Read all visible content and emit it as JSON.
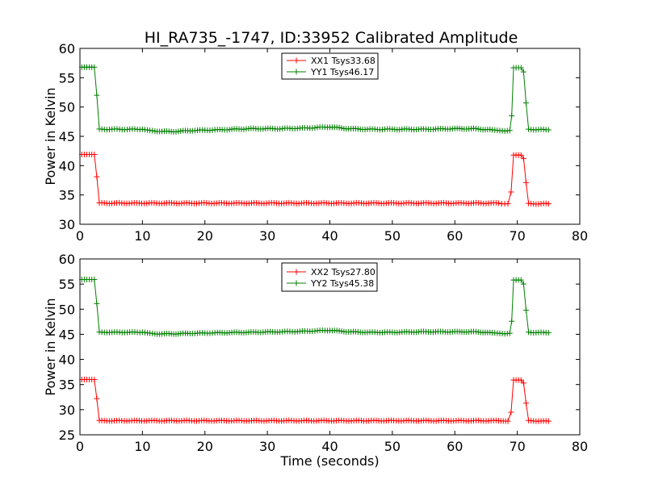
{
  "title": "HI_RA735_-1747, ID:33952 Calibrated Amplitude",
  "chart_data": [
    {
      "type": "line",
      "xlabel": "",
      "ylabel": "Power in Kelvin",
      "xlim": [
        0,
        80
      ],
      "ylim": [
        30,
        60
      ],
      "xticks": [
        0,
        10,
        20,
        30,
        40,
        50,
        60,
        70,
        80
      ],
      "yticks": [
        30,
        35,
        40,
        45,
        50,
        55,
        60
      ],
      "grid": false,
      "legend_position": "top-center",
      "marker": "plus",
      "series": [
        {
          "name": "XX1 Tsys33.68",
          "color": "#ff0000",
          "points": [
            [
              0.3,
              41.9
            ],
            [
              0.7,
              41.9
            ],
            [
              1.1,
              41.9
            ],
            [
              1.5,
              41.9
            ],
            [
              1.9,
              41.9
            ],
            [
              2.3,
              41.9
            ],
            [
              2.7,
              38.1
            ],
            [
              3.1,
              33.6
            ],
            [
              67,
              33.6
            ],
            [
              67.5,
              33.5
            ],
            [
              68,
              33.5
            ],
            [
              68.5,
              33.5
            ],
            [
              69,
              35.5
            ],
            [
              69.4,
              41.8
            ],
            [
              69.8,
              41.8
            ],
            [
              70.2,
              41.8
            ],
            [
              70.6,
              41.8
            ],
            [
              71,
              41.2
            ],
            [
              71.4,
              37.1
            ],
            [
              71.8,
              33.5
            ],
            [
              75,
              33.5
            ]
          ]
        },
        {
          "name": "YY1 Tsys46.17",
          "color": "#008000",
          "points": [
            [
              0.3,
              56.8
            ],
            [
              0.7,
              56.8
            ],
            [
              1.1,
              56.8
            ],
            [
              1.5,
              56.8
            ],
            [
              1.9,
              56.8
            ],
            [
              2.3,
              56.8
            ],
            [
              2.7,
              52
            ],
            [
              3.1,
              46.2
            ],
            [
              10,
              46.2
            ],
            [
              12,
              45.9
            ],
            [
              15,
              45.8
            ],
            [
              18,
              46
            ],
            [
              22,
              46.1
            ],
            [
              27,
              46.3
            ],
            [
              32,
              46.3
            ],
            [
              36,
              46.4
            ],
            [
              40,
              46.6
            ],
            [
              43,
              46.3
            ],
            [
              46,
              46.2
            ],
            [
              50,
              46.2
            ],
            [
              55,
              46.2
            ],
            [
              60,
              46.3
            ],
            [
              63,
              46.3
            ],
            [
              66,
              46.1
            ],
            [
              68,
              45.9
            ],
            [
              68.8,
              46
            ],
            [
              69.1,
              48.5
            ],
            [
              69.4,
              56.7
            ],
            [
              69.8,
              56.7
            ],
            [
              70.2,
              56.7
            ],
            [
              70.6,
              56.7
            ],
            [
              71,
              56
            ],
            [
              71.4,
              50.7
            ],
            [
              71.8,
              46.2
            ],
            [
              75,
              46.1
            ]
          ]
        }
      ]
    },
    {
      "type": "line",
      "xlabel": "Time (seconds)",
      "ylabel": "Power in Kelvin",
      "xlim": [
        0,
        80
      ],
      "ylim": [
        25,
        60
      ],
      "xticks": [
        0,
        10,
        20,
        30,
        40,
        50,
        60,
        70,
        80
      ],
      "yticks": [
        25,
        30,
        35,
        40,
        45,
        50,
        55,
        60
      ],
      "grid": false,
      "legend_position": "top-center",
      "marker": "plus",
      "series": [
        {
          "name": "XX2 Tsys27.80",
          "color": "#ff0000",
          "points": [
            [
              0.3,
              36
            ],
            [
              0.7,
              36
            ],
            [
              1.1,
              36
            ],
            [
              1.5,
              36
            ],
            [
              1.9,
              36
            ],
            [
              2.3,
              36
            ],
            [
              2.7,
              32.2
            ],
            [
              3.1,
              27.8
            ],
            [
              67,
              27.8
            ],
            [
              68.5,
              27.7
            ],
            [
              69,
              29.5
            ],
            [
              69.4,
              35.9
            ],
            [
              69.8,
              35.9
            ],
            [
              70.2,
              35.9
            ],
            [
              70.6,
              35.9
            ],
            [
              71,
              35.3
            ],
            [
              71.4,
              31.3
            ],
            [
              71.8,
              27.8
            ],
            [
              75,
              27.7
            ]
          ]
        },
        {
          "name": "YY2 Tsys45.38",
          "color": "#008000",
          "points": [
            [
              0.3,
              55.9
            ],
            [
              0.7,
              55.9
            ],
            [
              1.1,
              55.9
            ],
            [
              1.5,
              55.9
            ],
            [
              1.9,
              55.9
            ],
            [
              2.3,
              55.9
            ],
            [
              2.7,
              51.1
            ],
            [
              3.1,
              45.4
            ],
            [
              10,
              45.4
            ],
            [
              12,
              45.1
            ],
            [
              15,
              45.1
            ],
            [
              18,
              45.2
            ],
            [
              22,
              45.3
            ],
            [
              27,
              45.4
            ],
            [
              32,
              45.5
            ],
            [
              36,
              45.6
            ],
            [
              40,
              45.8
            ],
            [
              43,
              45.5
            ],
            [
              46,
              45.4
            ],
            [
              50,
              45.4
            ],
            [
              55,
              45.5
            ],
            [
              60,
              45.5
            ],
            [
              63,
              45.5
            ],
            [
              66,
              45.3
            ],
            [
              68,
              45.1
            ],
            [
              68.8,
              45.2
            ],
            [
              69.1,
              47.6
            ],
            [
              69.4,
              55.8
            ],
            [
              69.8,
              55.8
            ],
            [
              70.2,
              55.8
            ],
            [
              70.6,
              55.8
            ],
            [
              71,
              55
            ],
            [
              71.4,
              49.8
            ],
            [
              71.8,
              45.4
            ],
            [
              75,
              45.3
            ]
          ]
        }
      ]
    }
  ]
}
